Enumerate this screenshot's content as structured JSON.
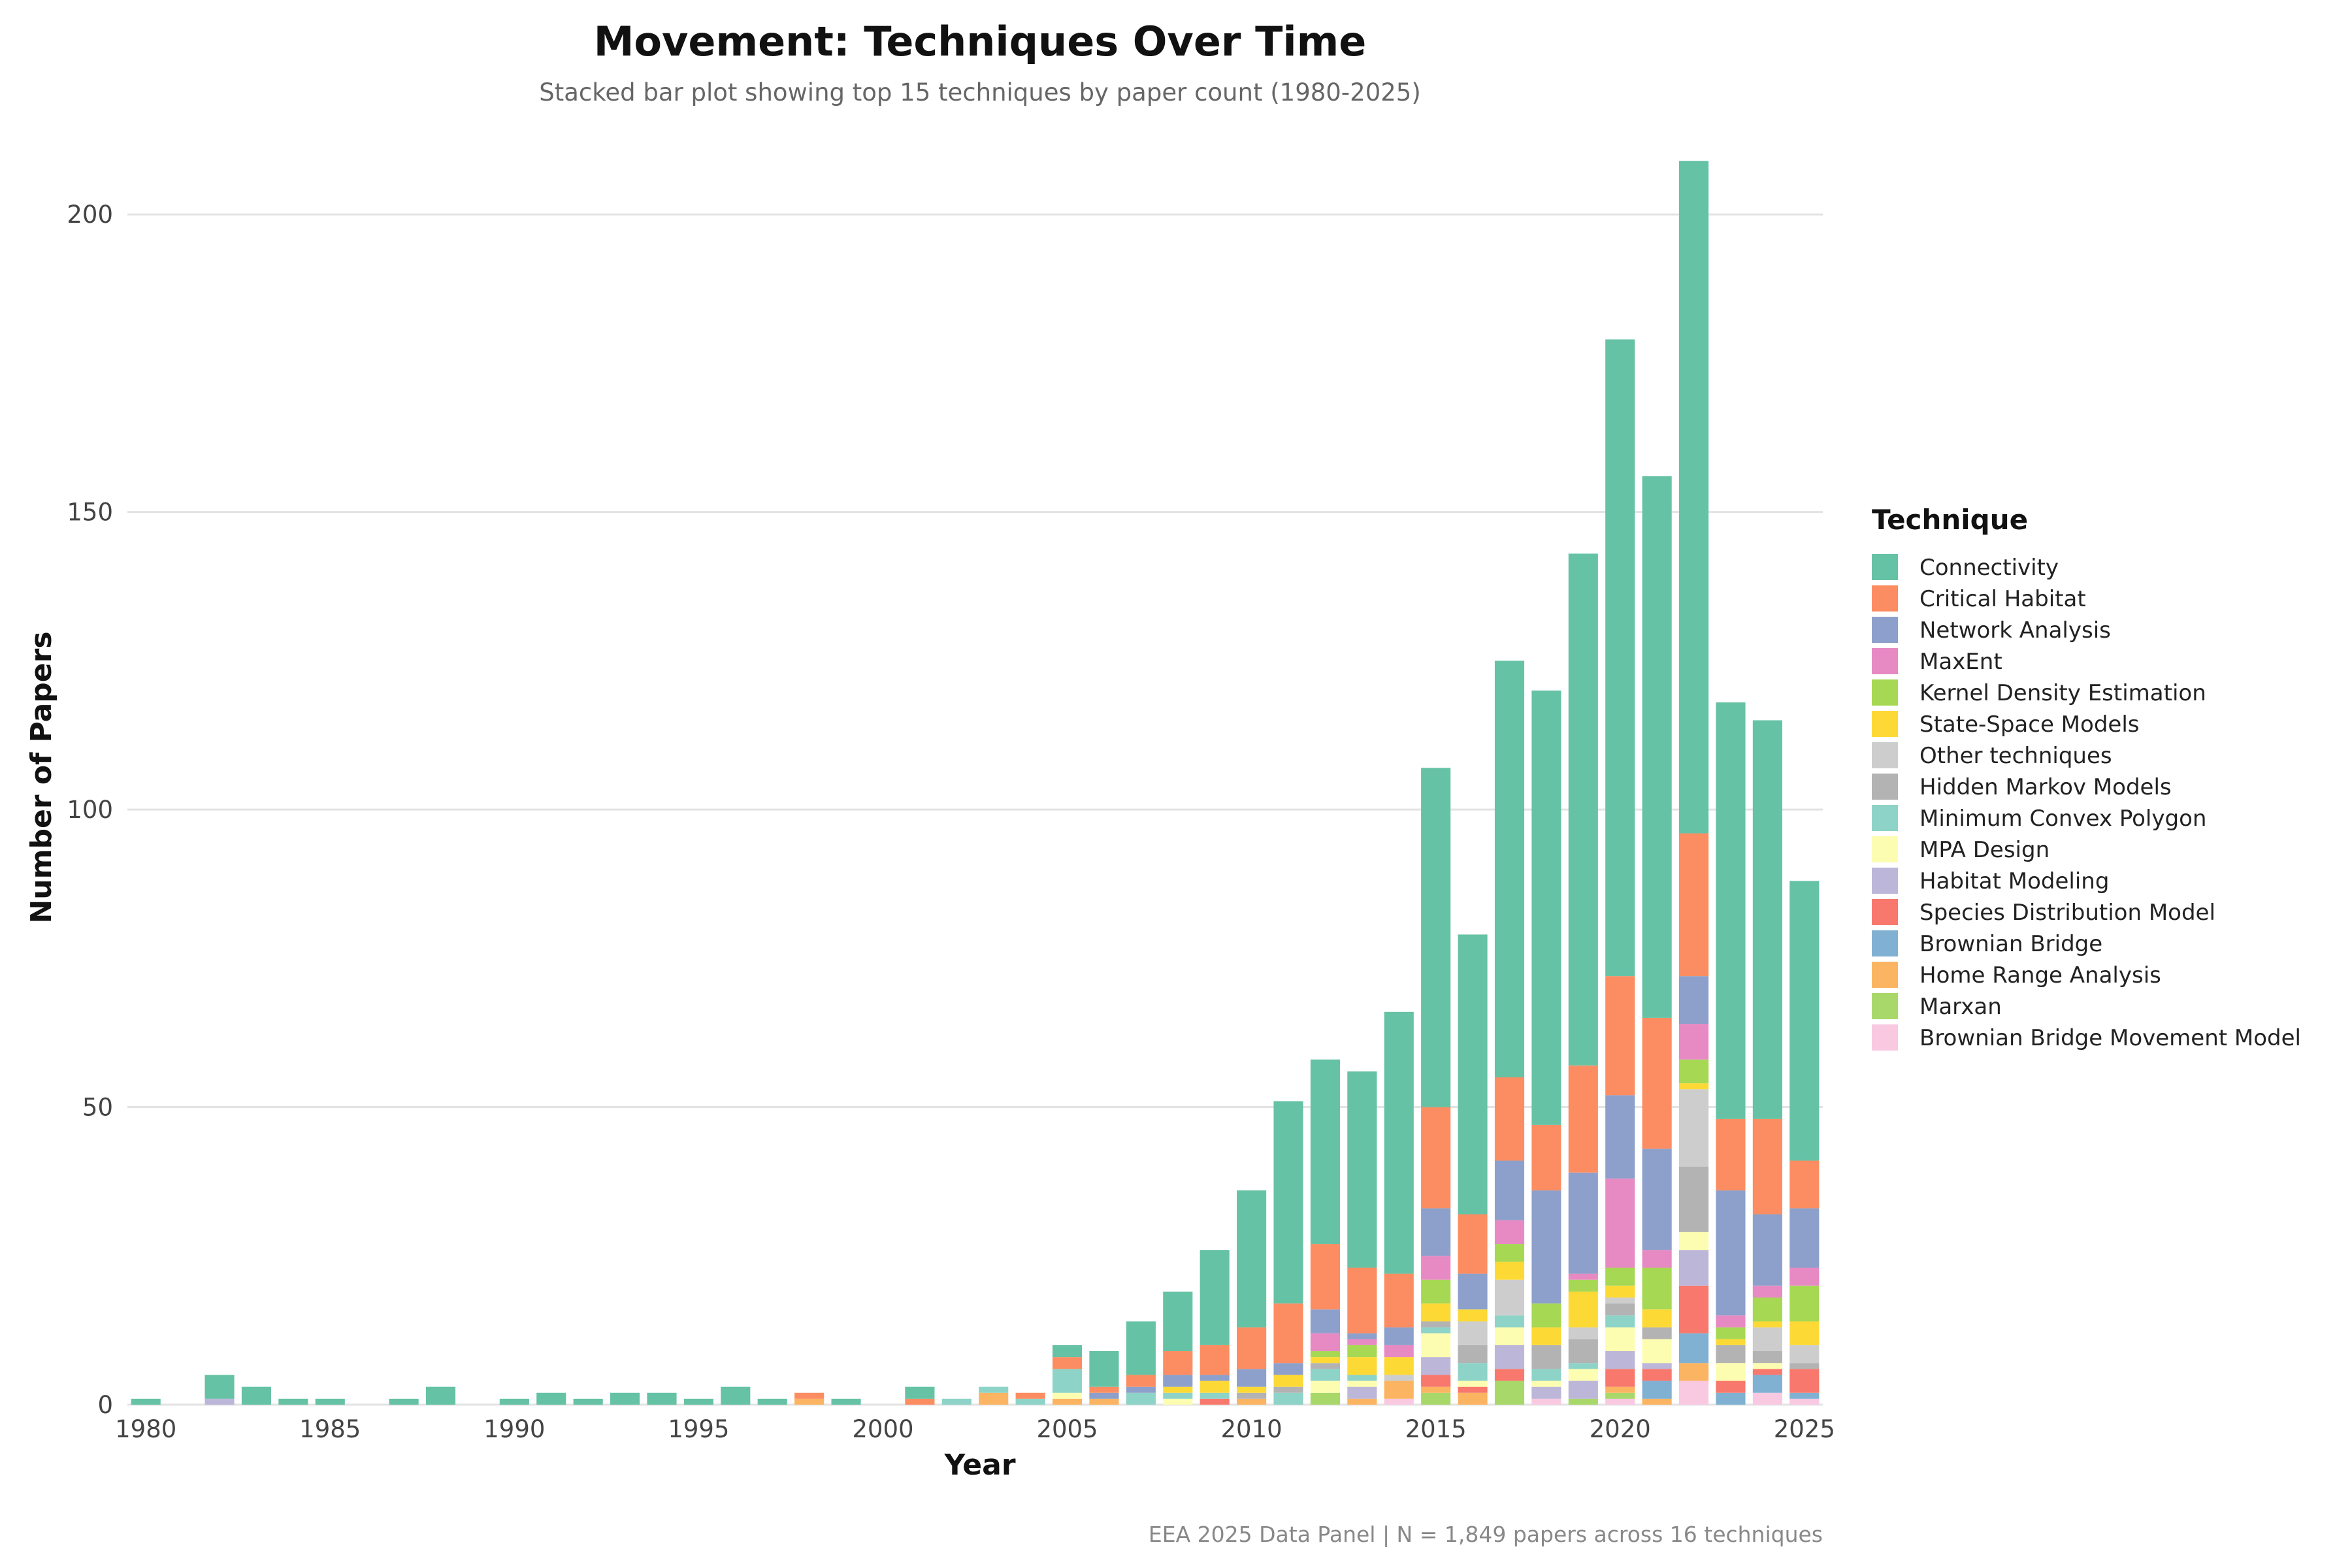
{
  "chart_data": {
    "type": "bar",
    "stacked": true,
    "title": "Movement: Techniques Over Time",
    "subtitle": "Stacked bar plot showing top 15 techniques by paper count (1980-2025)",
    "xlabel": "Year",
    "ylabel": "Number of Papers",
    "caption": "EEA 2025 Data Panel | N = 1,849 papers across 16 techniques",
    "legend_title": "Technique",
    "legend_position": "right",
    "grid": "horizontal",
    "ylim": [
      0,
      211
    ],
    "yticks": [
      0,
      50,
      100,
      150,
      200
    ],
    "xticks": [
      1980,
      1985,
      1990,
      1995,
      2000,
      2005,
      2010,
      2015,
      2020,
      2025
    ],
    "categories": [
      1980,
      1981,
      1982,
      1983,
      1984,
      1985,
      1986,
      1987,
      1988,
      1989,
      1990,
      1991,
      1992,
      1993,
      1994,
      1995,
      1996,
      1997,
      1998,
      1999,
      2000,
      2001,
      2002,
      2003,
      2004,
      2005,
      2006,
      2007,
      2008,
      2009,
      2010,
      2011,
      2012,
      2013,
      2014,
      2015,
      2016,
      2017,
      2018,
      2019,
      2020,
      2021,
      2022,
      2023,
      2024,
      2025
    ],
    "series": [
      {
        "name": "Brownian Bridge Movement Model",
        "color": "#f9c9e2",
        "values": [
          0,
          0,
          0,
          0,
          0,
          0,
          0,
          0,
          0,
          0,
          0,
          0,
          0,
          0,
          0,
          0,
          0,
          0,
          0,
          0,
          0,
          0,
          0,
          0,
          0,
          0,
          0,
          0,
          0,
          0,
          0,
          0,
          0,
          0,
          1,
          0,
          0,
          0,
          1,
          0,
          1,
          0,
          4,
          0,
          2,
          1
        ]
      },
      {
        "name": "Marxan",
        "color": "#a8d86a",
        "values": [
          0,
          0,
          0,
          0,
          0,
          0,
          0,
          0,
          0,
          0,
          0,
          0,
          0,
          0,
          0,
          0,
          0,
          0,
          0,
          0,
          0,
          0,
          0,
          0,
          0,
          0,
          0,
          0,
          0,
          0,
          0,
          0,
          2,
          0,
          0,
          2,
          0,
          4,
          0,
          1,
          1,
          0,
          0,
          0,
          0,
          0
        ]
      },
      {
        "name": "Home Range Analysis",
        "color": "#fbb462",
        "values": [
          0,
          0,
          0,
          0,
          0,
          0,
          0,
          0,
          0,
          0,
          0,
          0,
          0,
          0,
          0,
          0,
          0,
          0,
          1,
          0,
          0,
          0,
          0,
          2,
          0,
          1,
          1,
          0,
          0,
          0,
          1,
          0,
          0,
          1,
          3,
          1,
          2,
          0,
          0,
          0,
          1,
          1,
          3,
          0,
          0,
          0
        ]
      },
      {
        "name": "Brownian Bridge",
        "color": "#80b1d3",
        "values": [
          0,
          0,
          0,
          0,
          0,
          0,
          0,
          0,
          0,
          0,
          0,
          0,
          0,
          0,
          0,
          0,
          0,
          0,
          0,
          0,
          0,
          0,
          0,
          0,
          0,
          0,
          0,
          0,
          0,
          0,
          0,
          0,
          0,
          0,
          0,
          0,
          0,
          0,
          0,
          0,
          0,
          3,
          5,
          2,
          3,
          1
        ]
      },
      {
        "name": "Species Distribution Model",
        "color": "#f8786d",
        "values": [
          0,
          0,
          0,
          0,
          0,
          0,
          0,
          0,
          0,
          0,
          0,
          0,
          0,
          0,
          0,
          0,
          0,
          0,
          0,
          0,
          0,
          0,
          0,
          0,
          0,
          0,
          0,
          0,
          0,
          1,
          0,
          0,
          0,
          0,
          0,
          2,
          1,
          2,
          0,
          0,
          3,
          2,
          8,
          2,
          1,
          4
        ]
      },
      {
        "name": "Habitat Modeling",
        "color": "#bcb6d9",
        "values": [
          0,
          0,
          1,
          0,
          0,
          0,
          0,
          0,
          0,
          0,
          0,
          0,
          0,
          0,
          0,
          0,
          0,
          0,
          0,
          0,
          0,
          0,
          0,
          0,
          0,
          0,
          0,
          0,
          0,
          0,
          0,
          0,
          0,
          2,
          0,
          3,
          0,
          4,
          2,
          3,
          3,
          1,
          6,
          0,
          0,
          0
        ]
      },
      {
        "name": "MPA Design",
        "color": "#fdfdb1",
        "values": [
          0,
          0,
          0,
          0,
          0,
          0,
          0,
          0,
          0,
          0,
          0,
          0,
          0,
          0,
          0,
          0,
          0,
          0,
          0,
          0,
          0,
          0,
          0,
          0,
          0,
          1,
          0,
          0,
          1,
          0,
          0,
          0,
          2,
          1,
          0,
          4,
          1,
          3,
          1,
          2,
          4,
          4,
          3,
          3,
          1,
          0
        ]
      },
      {
        "name": "Minimum Convex Polygon",
        "color": "#8ed3c7",
        "values": [
          0,
          0,
          0,
          0,
          0,
          0,
          0,
          0,
          0,
          0,
          0,
          0,
          0,
          0,
          0,
          0,
          0,
          0,
          0,
          0,
          0,
          0,
          1,
          1,
          1,
          4,
          0,
          2,
          1,
          1,
          0,
          2,
          2,
          1,
          0,
          1,
          3,
          2,
          2,
          1,
          2,
          0,
          0,
          0,
          0,
          0
        ]
      },
      {
        "name": "Hidden Markov Models",
        "color": "#b3b3b3",
        "values": [
          0,
          0,
          0,
          0,
          0,
          0,
          0,
          0,
          0,
          0,
          0,
          0,
          0,
          0,
          0,
          0,
          0,
          0,
          0,
          0,
          0,
          0,
          0,
          0,
          0,
          0,
          0,
          0,
          0,
          0,
          1,
          1,
          1,
          0,
          0,
          1,
          3,
          0,
          4,
          4,
          2,
          2,
          11,
          3,
          2,
          1
        ]
      },
      {
        "name": "Other techniques",
        "color": "#cdcdcd",
        "values": [
          0,
          0,
          0,
          0,
          0,
          0,
          0,
          0,
          0,
          0,
          0,
          0,
          0,
          0,
          0,
          0,
          0,
          0,
          0,
          0,
          0,
          0,
          0,
          0,
          0,
          0,
          0,
          0,
          0,
          0,
          0,
          0,
          0,
          0,
          1,
          0,
          4,
          6,
          0,
          2,
          1,
          0,
          13,
          0,
          4,
          3
        ]
      },
      {
        "name": "State-Space Models",
        "color": "#fdd936",
        "values": [
          0,
          0,
          0,
          0,
          0,
          0,
          0,
          0,
          0,
          0,
          0,
          0,
          0,
          0,
          0,
          0,
          0,
          0,
          0,
          0,
          0,
          0,
          0,
          0,
          0,
          0,
          0,
          0,
          1,
          2,
          1,
          2,
          1,
          3,
          3,
          3,
          2,
          3,
          3,
          6,
          2,
          3,
          1,
          1,
          1,
          4
        ]
      },
      {
        "name": "Kernel Density Estimation",
        "color": "#a6d854",
        "values": [
          0,
          0,
          0,
          0,
          0,
          0,
          0,
          0,
          0,
          0,
          0,
          0,
          0,
          0,
          0,
          0,
          0,
          0,
          0,
          0,
          0,
          0,
          0,
          0,
          0,
          0,
          0,
          0,
          0,
          0,
          0,
          0,
          1,
          2,
          0,
          4,
          0,
          3,
          4,
          2,
          3,
          7,
          4,
          2,
          4,
          6
        ]
      },
      {
        "name": "MaxEnt",
        "color": "#e78ac3",
        "values": [
          0,
          0,
          0,
          0,
          0,
          0,
          0,
          0,
          0,
          0,
          0,
          0,
          0,
          0,
          0,
          0,
          0,
          0,
          0,
          0,
          0,
          0,
          0,
          0,
          0,
          0,
          0,
          0,
          0,
          0,
          0,
          0,
          3,
          1,
          2,
          4,
          0,
          4,
          0,
          1,
          15,
          3,
          6,
          2,
          2,
          3
        ]
      },
      {
        "name": "Network Analysis",
        "color": "#8da0cb",
        "values": [
          0,
          0,
          0,
          0,
          0,
          0,
          0,
          0,
          0,
          0,
          0,
          0,
          0,
          0,
          0,
          0,
          0,
          0,
          0,
          0,
          0,
          0,
          0,
          0,
          0,
          0,
          1,
          1,
          2,
          1,
          3,
          2,
          4,
          1,
          3,
          8,
          6,
          10,
          19,
          17,
          14,
          17,
          8,
          21,
          12,
          10
        ]
      },
      {
        "name": "Critical Habitat",
        "color": "#fc8d62",
        "values": [
          0,
          0,
          0,
          0,
          0,
          0,
          0,
          0,
          0,
          0,
          0,
          0,
          0,
          0,
          0,
          0,
          0,
          0,
          1,
          0,
          0,
          1,
          0,
          0,
          1,
          2,
          1,
          2,
          4,
          5,
          7,
          10,
          11,
          11,
          9,
          17,
          10,
          14,
          11,
          18,
          20,
          22,
          24,
          12,
          16,
          8
        ]
      },
      {
        "name": "Connectivity",
        "color": "#66c2a5",
        "values": [
          1,
          0,
          4,
          3,
          1,
          1,
          0,
          1,
          3,
          0,
          1,
          2,
          1,
          2,
          2,
          1,
          3,
          1,
          0,
          1,
          0,
          2,
          0,
          0,
          0,
          2,
          6,
          9,
          10,
          16,
          23,
          34,
          31,
          33,
          44,
          57,
          47,
          70,
          73,
          86,
          107,
          91,
          113,
          70,
          67,
          47
        ]
      }
    ]
  }
}
